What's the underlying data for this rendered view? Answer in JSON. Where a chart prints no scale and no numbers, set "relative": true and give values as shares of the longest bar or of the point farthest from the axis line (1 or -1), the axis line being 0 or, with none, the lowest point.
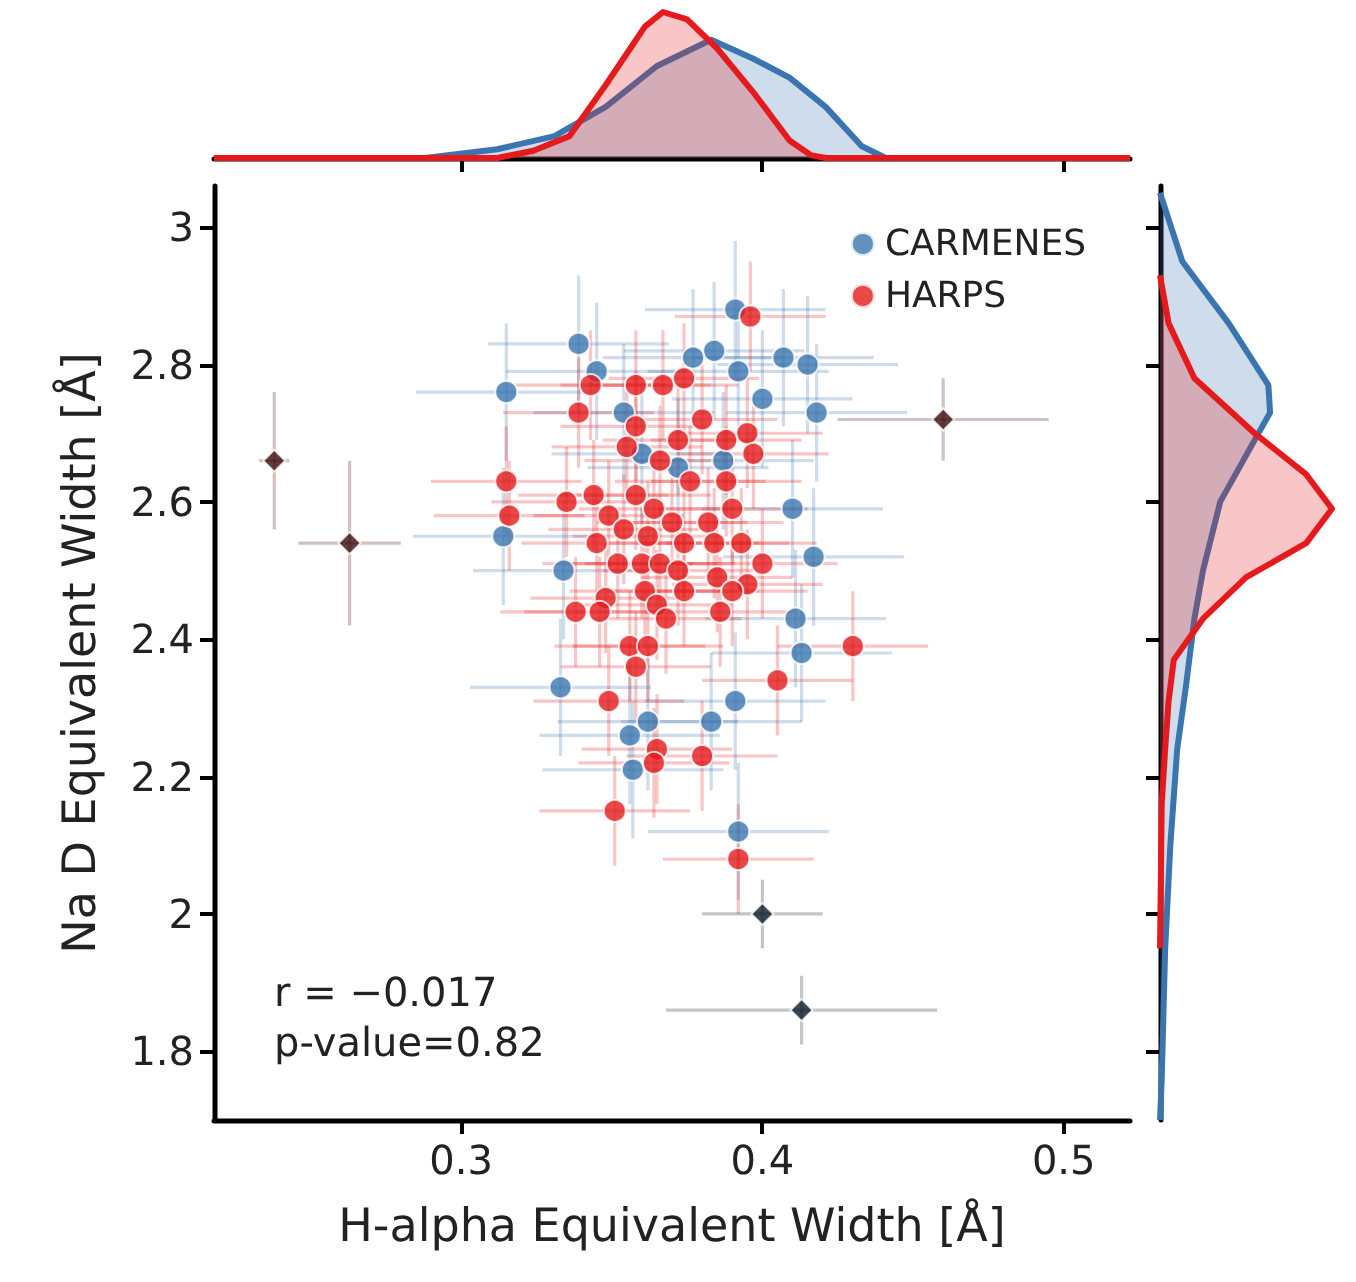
{
  "chart_data": [
    {
      "type": "scatter",
      "xlabel": "H-alpha Equivalent Width [Å]",
      "ylabel": "Na D Equivalent Width [Å]",
      "xlim": [
        0.218,
        0.522
      ],
      "xticks": [
        0.3,
        0.4,
        0.5
      ],
      "ylim": [
        1.7,
        3.06
      ],
      "yticks": [
        1.8,
        2.0,
        2.2,
        2.4,
        2.6,
        2.8,
        3.0
      ],
      "grid": false,
      "legend": "top right",
      "annotations": [
        "r = −0.017",
        "p-value=0.82"
      ],
      "series": [
        {
          "name": "CARMENES",
          "color": "#3b75af",
          "marker": "circle",
          "x": [
            0.391,
            0.339,
            0.384,
            0.377,
            0.407,
            0.415,
            0.345,
            0.315,
            0.392,
            0.4,
            0.418,
            0.354,
            0.36,
            0.41,
            0.314,
            0.334,
            0.417,
            0.411,
            0.413,
            0.333,
            0.391,
            0.362,
            0.356,
            0.383,
            0.357,
            0.392,
            0.372,
            0.387
          ],
          "values": [
            2.88,
            2.83,
            2.82,
            2.81,
            2.81,
            2.8,
            2.79,
            2.76,
            2.79,
            2.75,
            2.73,
            2.73,
            2.67,
            2.59,
            2.55,
            2.5,
            2.52,
            2.43,
            2.38,
            2.33,
            2.31,
            2.28,
            2.26,
            2.28,
            2.21,
            2.12,
            2.65,
            2.66
          ],
          "errors": [
            0.1,
            0.1,
            0.1,
            0.1,
            0.1,
            0.1,
            0.1,
            0.1,
            0.1,
            0.1,
            0.1,
            0.1,
            0.1,
            0.1,
            0.1,
            0.1,
            0.1,
            0.1,
            0.1,
            0.1,
            0.1,
            0.1,
            0.1,
            0.1,
            0.1,
            0.1,
            0.1,
            0.1
          ],
          "xerrors": [
            0.03,
            0.03,
            0.03,
            0.03,
            0.03,
            0.03,
            0.03,
            0.03,
            0.03,
            0.03,
            0.03,
            0.03,
            0.03,
            0.03,
            0.03,
            0.03,
            0.03,
            0.03,
            0.03,
            0.03,
            0.03,
            0.03,
            0.03,
            0.03,
            0.03,
            0.03,
            0.03,
            0.03
          ]
        },
        {
          "name": "HARPS",
          "color": "#e41a1c",
          "marker": "circle",
          "x": [
            0.396,
            0.343,
            0.358,
            0.367,
            0.374,
            0.339,
            0.358,
            0.38,
            0.395,
            0.355,
            0.372,
            0.388,
            0.397,
            0.366,
            0.376,
            0.388,
            0.315,
            0.335,
            0.344,
            0.358,
            0.364,
            0.316,
            0.349,
            0.354,
            0.37,
            0.382,
            0.39,
            0.345,
            0.362,
            0.374,
            0.384,
            0.393,
            0.352,
            0.36,
            0.366,
            0.4,
            0.372,
            0.385,
            0.395,
            0.39,
            0.348,
            0.361,
            0.374,
            0.338,
            0.346,
            0.365,
            0.386,
            0.368,
            0.356,
            0.362,
            0.358,
            0.43,
            0.349,
            0.405,
            0.365,
            0.364,
            0.38,
            0.351,
            0.392
          ],
          "values": [
            2.87,
            2.77,
            2.77,
            2.77,
            2.78,
            2.73,
            2.71,
            2.72,
            2.7,
            2.68,
            2.69,
            2.69,
            2.67,
            2.66,
            2.63,
            2.63,
            2.63,
            2.6,
            2.61,
            2.61,
            2.59,
            2.58,
            2.58,
            2.56,
            2.57,
            2.57,
            2.59,
            2.54,
            2.55,
            2.54,
            2.54,
            2.54,
            2.51,
            2.51,
            2.51,
            2.51,
            2.5,
            2.49,
            2.48,
            2.47,
            2.46,
            2.47,
            2.47,
            2.44,
            2.44,
            2.45,
            2.44,
            2.43,
            2.39,
            2.39,
            2.36,
            2.39,
            2.31,
            2.34,
            2.24,
            2.22,
            2.23,
            2.15,
            2.08
          ],
          "errors": [
            0.08,
            0.08,
            0.08,
            0.08,
            0.08,
            0.08,
            0.08,
            0.08,
            0.08,
            0.08,
            0.08,
            0.08,
            0.08,
            0.08,
            0.08,
            0.08,
            0.08,
            0.08,
            0.08,
            0.08,
            0.08,
            0.08,
            0.08,
            0.08,
            0.08,
            0.08,
            0.08,
            0.08,
            0.08,
            0.08,
            0.08,
            0.08,
            0.08,
            0.08,
            0.08,
            0.08,
            0.08,
            0.08,
            0.08,
            0.08,
            0.08,
            0.08,
            0.08,
            0.08,
            0.08,
            0.08,
            0.08,
            0.08,
            0.08,
            0.08,
            0.08,
            0.08,
            0.08,
            0.08,
            0.08,
            0.08,
            0.08,
            0.08,
            0.08
          ],
          "xerrors": [
            0.025,
            0.025,
            0.025,
            0.025,
            0.025,
            0.025,
            0.025,
            0.025,
            0.025,
            0.025,
            0.025,
            0.025,
            0.025,
            0.025,
            0.025,
            0.025,
            0.025,
            0.025,
            0.025,
            0.025,
            0.025,
            0.025,
            0.025,
            0.025,
            0.025,
            0.025,
            0.025,
            0.025,
            0.025,
            0.025,
            0.025,
            0.025,
            0.025,
            0.025,
            0.025,
            0.025,
            0.025,
            0.025,
            0.025,
            0.025,
            0.025,
            0.025,
            0.025,
            0.025,
            0.025,
            0.025,
            0.025,
            0.025,
            0.025,
            0.025,
            0.025,
            0.025,
            0.025,
            0.025,
            0.025,
            0.025,
            0.025,
            0.025,
            0.025
          ]
        },
        {
          "colors": [
            "#3d0b0b",
            "#3d0b0b",
            "#3d0b0b",
            "#0b1a2b",
            "#0b1a2b"
          ],
          "marker": "diamond",
          "x": [
            0.238,
            0.263,
            0.46,
            0.4,
            0.413
          ],
          "values": [
            2.66,
            2.54,
            2.72,
            2.0,
            1.86
          ],
          "errors": [
            0.1,
            0.12,
            0.06,
            0.05,
            0.05
          ],
          "xerrors": [
            0.005,
            0.017,
            0.035,
            0.02,
            0.045
          ]
        }
      ]
    },
    {
      "type": "area",
      "relative": true,
      "xlim": [
        0.218,
        0.522
      ],
      "xticks": [
        0.3,
        0.4,
        0.5
      ],
      "tick_labels": false,
      "series": [
        {
          "color": "#3b75af",
          "x": [
            0.218,
            0.288,
            0.312,
            0.331,
            0.348,
            0.365,
            0.383,
            0.397,
            0.409,
            0.421,
            0.433,
            0.441,
            0.522
          ],
          "values": [
            0,
            0,
            0.06,
            0.15,
            0.35,
            0.63,
            0.81,
            0.68,
            0.55,
            0.35,
            0.08,
            0,
            0
          ]
        },
        {
          "color": "#e41a1c",
          "x": [
            0.218,
            0.312,
            0.324,
            0.336,
            0.348,
            0.361,
            0.367,
            0.375,
            0.385,
            0.397,
            0.409,
            0.416,
            0.421,
            0.522
          ],
          "values": [
            0,
            0,
            0.05,
            0.15,
            0.5,
            0.9,
            1,
            0.95,
            0.75,
            0.45,
            0.12,
            0.02,
            0,
            0
          ]
        }
      ]
    },
    {
      "type": "area",
      "relative": true,
      "orientation": "horizontal",
      "ylim": [
        1.7,
        3.06
      ],
      "yticks": [
        1.8,
        2.0,
        2.2,
        2.4,
        2.6,
        2.8,
        3.0
      ],
      "tick_labels": false,
      "series": [
        {
          "color": "#3b75af",
          "x": [
            1.7,
            1.76,
            1.95,
            2.1,
            2.24,
            2.33,
            2.43,
            2.5,
            2.6,
            2.69,
            2.73,
            2.77,
            2.86,
            2.95,
            3.05
          ],
          "values": [
            0,
            0.01,
            0.03,
            0.06,
            0.1,
            0.15,
            0.2,
            0.25,
            0.35,
            0.55,
            0.64,
            0.63,
            0.4,
            0.13,
            0
          ]
        },
        {
          "color": "#e41a1c",
          "x": [
            1.95,
            2.16,
            2.24,
            2.31,
            2.37,
            2.43,
            2.49,
            2.54,
            2.59,
            2.64,
            2.7,
            2.78,
            2.86,
            2.93
          ],
          "values": [
            0,
            0.01,
            0.03,
            0.05,
            0.08,
            0.25,
            0.5,
            0.85,
            1,
            0.85,
            0.55,
            0.2,
            0.05,
            0
          ]
        }
      ]
    }
  ]
}
